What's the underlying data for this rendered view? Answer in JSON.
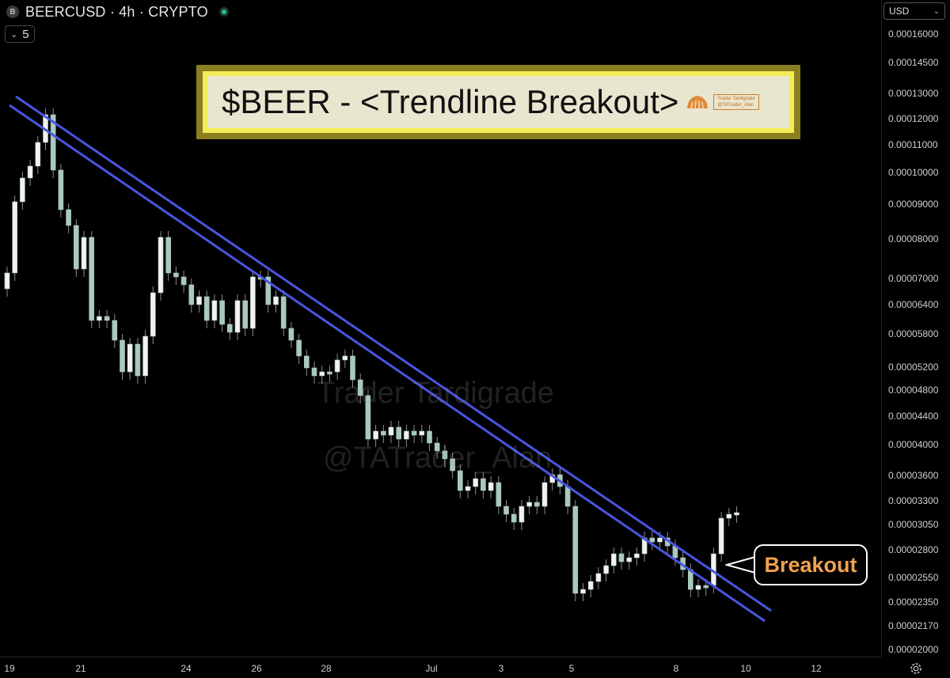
{
  "header": {
    "symbol_badge": "B",
    "title": "BEERCUSD · 4h · CRYPTO",
    "live_status_icon": "green-dot-icon",
    "indicator_count": "5"
  },
  "currency": {
    "label": "USD"
  },
  "banner": {
    "text": "$BEER - <Trendline Breakout>",
    "logo_line1": "Trader Tardigrade",
    "logo_line2": "@TATrader_Alan"
  },
  "watermark": {
    "line1": "Trader Tardigrade",
    "line2": "@TATrader_Alan"
  },
  "callout": {
    "text": "Breakout"
  },
  "colors": {
    "trendline": "#4a55e0",
    "candle": "#a9c9bc",
    "callout_text": "#f2a24d"
  },
  "chart_data": {
    "type": "candlestick",
    "price_axis_labels": [
      "0.00016000",
      "0.00014500",
      "0.00013000",
      "0.00012000",
      "0.00011000",
      "0.00010000",
      "0.00009000",
      "0.00008000",
      "0.00007000",
      "0.00006400",
      "0.00005800",
      "0.00005200",
      "0.00004800",
      "0.00004400",
      "0.00004000",
      "0.00003600",
      "0.00003300",
      "0.00003050",
      "0.00002800",
      "0.00002550",
      "0.00002350",
      "0.00002170",
      "0.00002000"
    ],
    "time_axis_labels": [
      "19",
      "21",
      "24",
      "26",
      "28",
      "Jul",
      "3",
      "5",
      "8",
      "10",
      "12"
    ],
    "scale": "log",
    "trendlines": [
      {
        "from": [
          "19",
          0.000125
        ],
        "to": [
          "10",
          2.2e-05
        ]
      },
      {
        "from": [
          "19",
          0.00013
        ],
        "to": [
          "10",
          2.3e-05
        ]
      }
    ],
    "last_price_approx": 3.2e-05
  }
}
